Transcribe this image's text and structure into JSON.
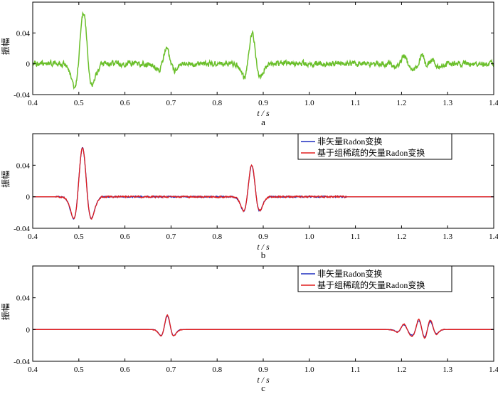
{
  "chart_data": [
    {
      "type": "line",
      "panel_label": "a",
      "xlabel": "t / s",
      "ylabel": "振幅",
      "xlim": [
        0.4,
        1.4
      ],
      "ylim": [
        -0.04,
        0.08
      ],
      "xticks": [
        0.4,
        0.5,
        0.6,
        0.7,
        0.8,
        0.9,
        1.0,
        1.1,
        1.2,
        1.3,
        1.4
      ],
      "xtick_labels": [
        "0.4",
        "0.5",
        "0.6",
        "0.7",
        "0.8",
        "0.9",
        "1.0",
        "1.1",
        "1.2",
        "1.3",
        "1.4"
      ],
      "yticks": [
        -0.04,
        0,
        0.04
      ],
      "ytick_labels": [
        "-0.04",
        "0",
        "0.04"
      ],
      "grid": false,
      "legend": null,
      "series": [
        {
          "color": "#6abf2a",
          "noise_amplitude": 0.003,
          "events": [
            {
              "t": 0.51,
              "amp": 0.066,
              "width": 0.011
            },
            {
              "t": 0.69,
              "amp": 0.02,
              "width": 0.01
            },
            {
              "t": 0.876,
              "amp": 0.04,
              "width": 0.01
            },
            {
              "t": 1.205,
              "amp": 0.01,
              "width": 0.009
            },
            {
              "t": 1.245,
              "amp": 0.014,
              "width": 0.009
            },
            {
              "t": 1.265,
              "amp": 0.01,
              "width": 0.009
            }
          ]
        }
      ]
    },
    {
      "type": "line",
      "panel_label": "b",
      "xlabel": "t / s",
      "ylabel": "振幅",
      "xlim": [
        0.4,
        1.4
      ],
      "ylim": [
        -0.04,
        0.08
      ],
      "xticks": [
        0.4,
        0.5,
        0.6,
        0.7,
        0.8,
        0.9,
        1.0,
        1.1,
        1.2,
        1.3,
        1.4
      ],
      "xtick_labels": [
        "0.4",
        "0.5",
        "0.6",
        "0.7",
        "0.8",
        "0.9",
        "1.0",
        "1.1",
        "1.2",
        "1.3",
        "1.4"
      ],
      "yticks": [
        -0.04,
        0,
        0.04
      ],
      "ytick_labels": [
        "-0.04",
        "0",
        "0.04"
      ],
      "grid": false,
      "legend": "top-right",
      "series": [
        {
          "name": "非矢量Radon变换",
          "color": "#1f2fbf",
          "noise_amplitude": 0.0007,
          "noise_range": [
            0.45,
            1.08
          ],
          "events": [
            {
              "t": 0.508,
              "amp": 0.062,
              "width": 0.011
            },
            {
              "t": 0.875,
              "amp": 0.04,
              "width": 0.01
            }
          ]
        },
        {
          "name": "基于组稀疏的矢量Radon变换",
          "color": "#e01e1e",
          "noise_amplitude": 0.0009,
          "noise_range": [
            0.45,
            1.08
          ],
          "events": [
            {
              "t": 0.508,
              "amp": 0.062,
              "width": 0.011
            },
            {
              "t": 0.875,
              "amp": 0.04,
              "width": 0.01
            }
          ]
        }
      ]
    },
    {
      "type": "line",
      "panel_label": "c",
      "xlabel": "t / s",
      "ylabel": "振幅",
      "xlim": [
        0.4,
        1.4
      ],
      "ylim": [
        -0.04,
        0.08
      ],
      "xticks": [
        0.4,
        0.5,
        0.6,
        0.7,
        0.8,
        0.9,
        1.0,
        1.1,
        1.2,
        1.3,
        1.4
      ],
      "xtick_labels": [
        "0.4",
        "0.5",
        "0.6",
        "0.7",
        "0.8",
        "0.9",
        "1.0",
        "1.1",
        "1.2",
        "1.3",
        "1.4"
      ],
      "yticks": [
        -0.04,
        0,
        0.04
      ],
      "ytick_labels": [
        "-0.04",
        "0",
        "0.04"
      ],
      "grid": false,
      "legend": "top-right",
      "series": [
        {
          "name": "非矢量Radon变换",
          "color": "#1f2fbf",
          "noise_amplitude": 0.0003,
          "events": [
            {
              "t": 0.692,
              "amp": 0.017,
              "width": 0.008
            },
            {
              "t": 1.205,
              "amp": 0.006,
              "width": 0.008
            },
            {
              "t": 1.238,
              "amp": 0.012,
              "width": 0.008
            },
            {
              "t": 1.262,
              "amp": 0.011,
              "width": 0.008
            }
          ]
        },
        {
          "name": "基于组稀疏的矢量Radon变换",
          "color": "#e01e1e",
          "noise_amplitude": 0.0005,
          "events": [
            {
              "t": 0.692,
              "amp": 0.018,
              "width": 0.008
            },
            {
              "t": 1.205,
              "amp": 0.007,
              "width": 0.008
            },
            {
              "t": 1.238,
              "amp": 0.014,
              "width": 0.008
            },
            {
              "t": 1.262,
              "amp": 0.013,
              "width": 0.008
            }
          ]
        }
      ]
    }
  ]
}
